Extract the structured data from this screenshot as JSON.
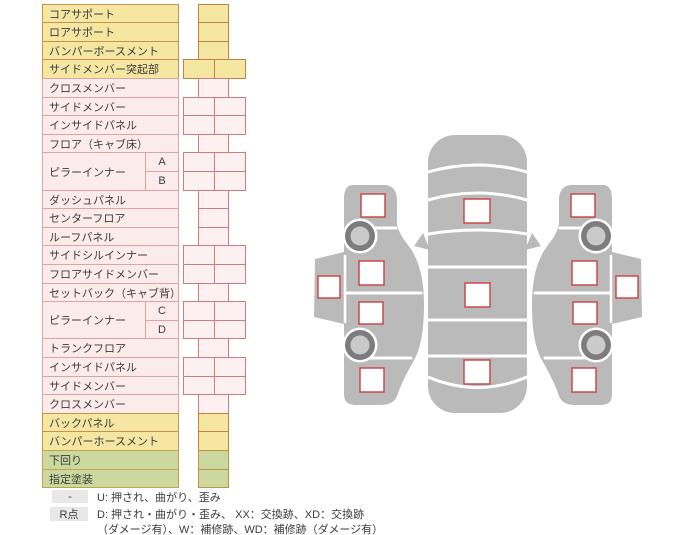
{
  "table": {
    "rows": [
      {
        "label": "コアサポート",
        "category": "yellow",
        "cells": 1
      },
      {
        "label": "ロアサポート",
        "category": "yellow",
        "cells": 1
      },
      {
        "label": "バンパーボースメント",
        "category": "yellow",
        "cells": 1
      },
      {
        "label": "サイドメンバー突起部",
        "category": "yellow",
        "cells": 2
      },
      {
        "label": "クロスメンバー",
        "category": "pink",
        "cells": 1
      },
      {
        "label": "サイドメンバー",
        "category": "pink",
        "cells": 2
      },
      {
        "label": "インサイドパネル",
        "category": "pink",
        "cells": 2
      },
      {
        "label": "フロア（キャブ床）",
        "category": "pink",
        "cells": 1
      },
      {
        "label": "ピラーインナー",
        "category": "pink",
        "cells": 2,
        "sub": [
          "A",
          "B"
        ]
      },
      {
        "label": "ダッシュパネル",
        "category": "pink",
        "cells": 1
      },
      {
        "label": "センターフロア",
        "category": "pink",
        "cells": 1
      },
      {
        "label": "ルーフパネル",
        "category": "pink",
        "cells": 1
      },
      {
        "label": "サイドシルインナー",
        "category": "pink",
        "cells": 2
      },
      {
        "label": "フロアサイドメンバー",
        "category": "pink",
        "cells": 2
      },
      {
        "label": "セットバック（キャブ背）",
        "category": "pink",
        "cells": 1
      },
      {
        "label": "ピラーインナー",
        "category": "pink",
        "cells": 2,
        "sub": [
          "C",
          "D"
        ]
      },
      {
        "label": "トランクフロア",
        "category": "pink",
        "cells": 1
      },
      {
        "label": "インサイドパネル",
        "category": "pink",
        "cells": 2
      },
      {
        "label": "サイドメンバー",
        "category": "pink",
        "cells": 2
      },
      {
        "label": "クロスメンバー",
        "category": "pink",
        "cells": 1
      },
      {
        "label": "バックパネル",
        "category": "yellow",
        "cells": 1
      },
      {
        "label": "バンパーホースメント",
        "category": "yellow",
        "cells": 1
      },
      {
        "label": "下回り",
        "category": "green",
        "cells": 1
      },
      {
        "label": "指定塗装",
        "category": "green",
        "cells": 1
      }
    ]
  },
  "legend": {
    "rows": [
      {
        "badge": "-",
        "text": "U: 押され、曲がり、歪み"
      },
      {
        "badge": "R点",
        "text": "D: 押され・曲がり・歪み、 XX：交換跡、XD：交換跡",
        "text2": "（ダメージ有）、W：補修跡、WD：補修跡（ダメージ有）"
      }
    ]
  },
  "diagram": {
    "checkbox_counts": {
      "left_side_view": 5,
      "top_view": 3,
      "right_side_view": 5
    },
    "wheel_count": 4
  },
  "colors": {
    "yellow_bg": "#f5e6a2",
    "yellow_border": "#c9914f",
    "yellow_cell_border": "#c08244",
    "pink_bg": "#fcebeb",
    "pink_border": "#dfa3a3",
    "pink_cell_bg": "#fdf0f0",
    "pink_cell_border": "#d07c7c",
    "green_bg": "#ccd99e",
    "green_border": "#c9a04e",
    "green_cell_border": "#bd9340",
    "text": "#3c3c3c",
    "badge_bg": "#e8e8e8",
    "car_gray": "#bababa",
    "wheel_ring": "#7d7d7d",
    "wheel_hub": "#cacaca",
    "checkbox_border": "#c94040",
    "checkbox_fill": "#ffffff"
  }
}
